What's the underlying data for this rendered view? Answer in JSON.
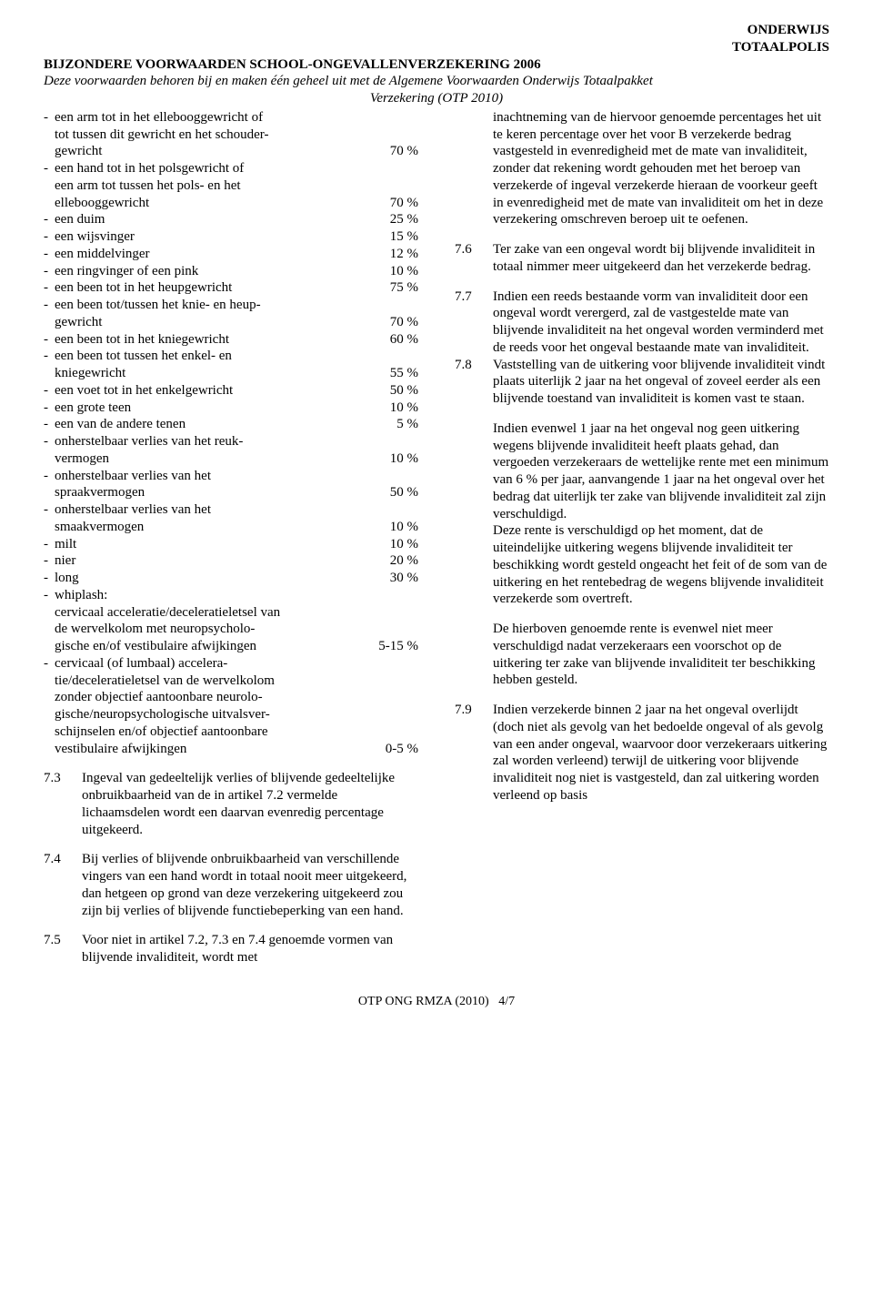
{
  "header": {
    "line1": "ONDERWIJS",
    "line2": "TOTAALPOLIS",
    "title": "BIJZONDERE VOORWAARDEN SCHOOL-ONGEVALLENVERZEKERING 2006",
    "intro": "Deze voorwaarden behoren bij en maken één geheel uit met de Algemene Voorwaarden Onderwijs Totaalpakket",
    "intro2": "Verzekering (OTP 2010)"
  },
  "left": {
    "items": [
      {
        "lines": [
          "een arm tot in het ellebooggewricht of",
          "tot tussen dit gewricht en het schouder-",
          "gewricht"
        ],
        "pct": "70 %"
      },
      {
        "lines": [
          "een hand tot in het polsgewricht of",
          "een arm tot tussen het pols- en het",
          "ellebooggewricht"
        ],
        "pct": "70 %"
      },
      {
        "lines": [
          "een duim"
        ],
        "pct": "25 %"
      },
      {
        "lines": [
          "een wijsvinger"
        ],
        "pct": "15 %"
      },
      {
        "lines": [
          "een middelvinger"
        ],
        "pct": "12 %"
      },
      {
        "lines": [
          "een ringvinger of een pink"
        ],
        "pct": "10 %"
      },
      {
        "lines": [
          "een been tot in het heupgewricht"
        ],
        "pct": "75 %"
      },
      {
        "lines": [
          "een been tot/tussen het knie- en heup-",
          "gewricht"
        ],
        "pct": "70 %"
      },
      {
        "lines": [
          "een been tot in het kniegewricht"
        ],
        "pct": "60 %"
      },
      {
        "lines": [
          "een been tot tussen het enkel- en",
          "kniegewricht"
        ],
        "pct": "55 %"
      },
      {
        "lines": [
          "een voet tot in het enkelgewricht"
        ],
        "pct": "50 %"
      },
      {
        "lines": [
          "een grote teen"
        ],
        "pct": "10 %"
      },
      {
        "lines": [
          "een van de andere tenen"
        ],
        "pct": "5 %"
      },
      {
        "lines": [
          "onherstelbaar verlies van het reuk-",
          "vermogen"
        ],
        "pct": "10 %"
      },
      {
        "lines": [
          "onherstelbaar verlies van het",
          "spraakvermogen"
        ],
        "pct": "50 %"
      },
      {
        "lines": [
          "onherstelbaar verlies van het",
          "smaakvermogen"
        ],
        "pct": "10 %"
      },
      {
        "lines": [
          "milt"
        ],
        "pct": "10 %"
      },
      {
        "lines": [
          "nier"
        ],
        "pct": "20 %"
      },
      {
        "lines": [
          "long"
        ],
        "pct": "30 %"
      },
      {
        "lines": [
          "whiplash:",
          "cervicaal acceleratie/deceleratieletsel van",
          "de wervelkolom met neuropsycholo-",
          "gische en/of vestibulaire afwijkingen"
        ],
        "pct": "5-15 %",
        "noDashAfterFirst": true
      },
      {
        "lines": [
          "cervicaal (of lumbaal) accelera-",
          "tie/deceleratieletsel van de wervelkolom",
          "zonder objectief aantoonbare neurolo-",
          "gische/neuropsychologische uitvalsver-",
          "schijnselen en/of objectief aantoonbare",
          "vestibulaire afwijkingen"
        ],
        "pct": "0-5 %"
      }
    ],
    "p73": {
      "num": "7.3",
      "text": "Ingeval van gedeeltelijk verlies of blijvende gedeeltelijke onbruikbaarheid van de in artikel 7.2 vermelde lichaamsdelen wordt een daarvan evenredig percentage uitgekeerd."
    },
    "p74": {
      "num": "7.4",
      "text": "Bij verlies of blijvende onbruikbaarheid van verschillende vingers van een hand wordt in totaal nooit meer uitgekeerd, dan hetgeen op grond van deze verzekering uitgekeerd zou zijn bij verlies of blijvende functiebeperking van een hand."
    },
    "p75": {
      "num": "7.5",
      "text": "Voor niet in artikel 7.2, 7.3 en 7.4 genoemde vormen van blijvende invaliditeit, wordt met"
    }
  },
  "right": {
    "contTop": "inachtneming van de hiervoor genoemde percentages het uit te keren percentage over het voor B verzekerde bedrag vastgesteld in evenredigheid met de mate van invaliditeit, zonder dat rekening wordt gehouden met het beroep van verzekerde of ingeval verzekerde hieraan de voorkeur geeft in evenredigheid met de mate van invaliditeit om het in deze verzekering omschreven beroep uit te oefenen.",
    "p76": {
      "num": "7.6",
      "text": "Ter zake van een ongeval wordt bij blijvende invaliditeit in totaal nimmer meer uitgekeerd dan het verzekerde bedrag."
    },
    "p77": {
      "num": "7.7",
      "text": "Indien een reeds bestaande vorm van invaliditeit door een ongeval wordt verergerd, zal de vastgestelde mate van blijvende invaliditeit na het ongeval worden verminderd met de reeds voor het ongeval bestaande mate van invaliditeit."
    },
    "p78": {
      "num": "7.8",
      "text1": "Vaststelling van de uitkering voor blijvende invaliditeit vindt plaats uiterlijk 2 jaar na het ongeval of zoveel eerder als een blijvende toestand van invaliditeit is komen vast te staan.",
      "text2": "Indien evenwel 1 jaar na het ongeval nog geen uitkering wegens blijvende invaliditeit heeft plaats gehad, dan vergoeden verzekeraars de wettelijke rente met een minimum van 6 % per jaar, aanvangende 1 jaar na het ongeval over het bedrag dat uiterlijk ter zake van blijvende invaliditeit zal zijn verschuldigd.",
      "text3": "Deze rente is verschuldigd op het moment, dat de uiteindelijke uitkering wegens blijvende invaliditeit ter beschikking wordt gesteld ongeacht het feit of de som van de uitkering en het rentebedrag de wegens blijvende invaliditeit verzekerde som overtreft.",
      "text4": "De hierboven genoemde rente is evenwel niet meer verschuldigd nadat verzekeraars een voorschot op de uitkering ter zake van blijvende invaliditeit ter beschikking hebben gesteld."
    },
    "p79": {
      "num": "7.9",
      "text": "Indien verzekerde binnen 2 jaar na het ongeval overlijdt (doch niet als gevolg van het bedoelde ongeval of als gevolg van een ander ongeval, waarvoor door verzekeraars uitkering zal worden verleend) terwijl de uitkering voor blijvende invaliditeit nog niet is vastgesteld, dan zal uitkering worden verleend op basis"
    }
  },
  "footer": {
    "ref": "OTP ONG RMZA (2010)",
    "page": "4/7"
  }
}
